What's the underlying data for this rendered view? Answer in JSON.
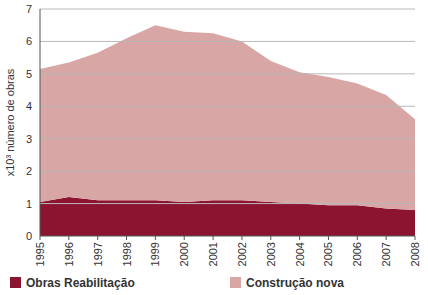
{
  "chart_data": {
    "type": "area",
    "stacked": true,
    "grid": true,
    "legend": "bottom",
    "y_label": "x10³  número de obras",
    "x": [
      1995,
      1996,
      1997,
      1998,
      1999,
      2000,
      2001,
      2002,
      2003,
      2004,
      2005,
      2006,
      2007,
      2008
    ],
    "xlim": [
      1995,
      2008
    ],
    "xticks": [
      1995,
      1996,
      1997,
      1998,
      1999,
      2000,
      2001,
      2002,
      2003,
      2004,
      2005,
      2006,
      2007,
      2008
    ],
    "ylim": [
      0,
      7
    ],
    "yticks": [
      0,
      1,
      2,
      3,
      4,
      5,
      6,
      7
    ],
    "series": [
      {
        "name": "Obras Reabilitação",
        "color": "#8c1430",
        "values": [
          1.05,
          1.2,
          1.1,
          1.1,
          1.1,
          1.05,
          1.1,
          1.1,
          1.05,
          1.0,
          0.95,
          0.95,
          0.85,
          0.8
        ]
      },
      {
        "name": "Construção nova",
        "color": "#d9a6a6",
        "values": [
          4.1,
          4.15,
          4.55,
          5.0,
          5.4,
          5.25,
          5.15,
          4.9,
          4.35,
          4.05,
          3.95,
          3.75,
          3.5,
          2.8
        ]
      }
    ]
  }
}
